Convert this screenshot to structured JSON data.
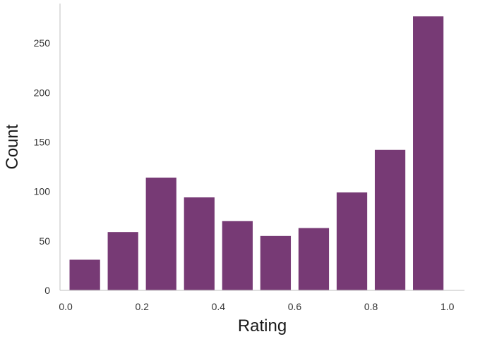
{
  "chart_data": {
    "type": "bar",
    "title": "",
    "xlabel": "Rating",
    "ylabel": "Count",
    "bins": [
      {
        "x0": 0.0,
        "x1": 0.1,
        "count": 31
      },
      {
        "x0": 0.1,
        "x1": 0.2,
        "count": 59
      },
      {
        "x0": 0.2,
        "x1": 0.3,
        "count": 114
      },
      {
        "x0": 0.3,
        "x1": 0.4,
        "count": 94
      },
      {
        "x0": 0.4,
        "x1": 0.5,
        "count": 70
      },
      {
        "x0": 0.5,
        "x1": 0.6,
        "count": 55
      },
      {
        "x0": 0.6,
        "x1": 0.7,
        "count": 63
      },
      {
        "x0": 0.7,
        "x1": 0.8,
        "count": 99
      },
      {
        "x0": 0.8,
        "x1": 0.9,
        "count": 142
      },
      {
        "x0": 0.9,
        "x1": 1.0,
        "count": 277
      }
    ],
    "bar_fraction": 0.8,
    "xlim": [
      -0.015,
      1.045
    ],
    "ylim": [
      0,
      290
    ],
    "xticks": [
      0.0,
      0.2,
      0.4,
      0.6,
      0.8,
      1.0
    ],
    "xtick_labels": [
      "0.0",
      "0.2",
      "0.4",
      "0.6",
      "0.8",
      "1.0"
    ],
    "yticks": [
      0,
      50,
      100,
      150,
      200,
      250
    ],
    "ytick_labels": [
      "0",
      "50",
      "100",
      "150",
      "200",
      "250"
    ],
    "grid": false,
    "bar_color": "#773A75",
    "axis_color": "#cccccc"
  }
}
